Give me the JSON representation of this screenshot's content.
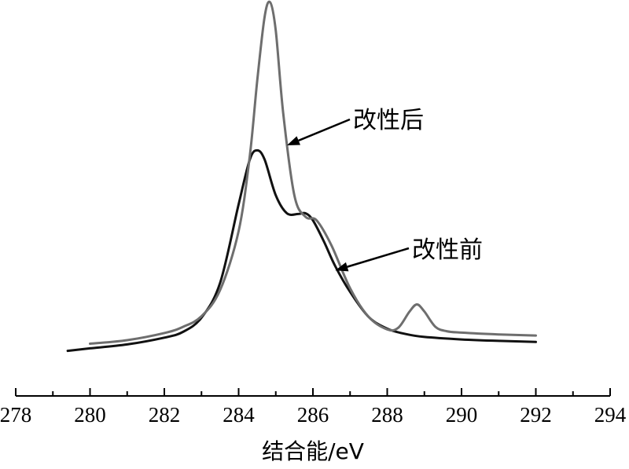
{
  "chart_data": {
    "type": "line",
    "title": "",
    "xlabel": "结合能/eV",
    "ylabel": "",
    "xlim": [
      278,
      294
    ],
    "ylim": [
      0,
      1
    ],
    "grid": false,
    "x_ticks": [
      278,
      280,
      282,
      284,
      286,
      288,
      290,
      292,
      294
    ],
    "series": [
      {
        "name": "改性前",
        "color": "#111111",
        "x": [
          279.4,
          280,
          281,
          282,
          282.5,
          283,
          283.5,
          284,
          284.3,
          284.5,
          284.7,
          285,
          285.3,
          285.6,
          285.8,
          286,
          286.3,
          286.6,
          287,
          287.5,
          288,
          288.5,
          289,
          290,
          291,
          292
        ],
        "y": [
          0.025,
          0.032,
          0.043,
          0.062,
          0.078,
          0.118,
          0.215,
          0.435,
          0.56,
          0.586,
          0.56,
          0.46,
          0.41,
          0.408,
          0.41,
          0.39,
          0.33,
          0.262,
          0.19,
          0.12,
          0.087,
          0.072,
          0.064,
          0.057,
          0.053,
          0.05
        ]
      },
      {
        "name": "改性后",
        "color": "#6e6e6e",
        "x": [
          280,
          281,
          282,
          282.5,
          283,
          283.5,
          284,
          284.3,
          284.5,
          284.7,
          284.85,
          285,
          285.2,
          285.5,
          285.8,
          286.1,
          286.5,
          287,
          287.5,
          288,
          288.3,
          288.6,
          288.8,
          289,
          289.3,
          289.6,
          290,
          291,
          292
        ],
        "y": [
          0.045,
          0.055,
          0.075,
          0.092,
          0.122,
          0.195,
          0.36,
          0.57,
          0.78,
          0.96,
          1.0,
          0.92,
          0.69,
          0.46,
          0.4,
          0.39,
          0.32,
          0.2,
          0.12,
          0.085,
          0.09,
          0.135,
          0.155,
          0.135,
          0.092,
          0.08,
          0.076,
          0.071,
          0.068
        ]
      }
    ],
    "annotations": [
      {
        "text": "改性后",
        "target_x": 285.3,
        "target_y": 0.6
      },
      {
        "text": "改性前",
        "target_x": 286.6,
        "target_y": 0.25
      }
    ]
  }
}
